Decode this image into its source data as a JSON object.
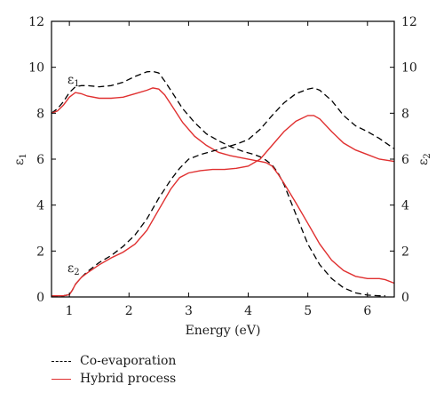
{
  "chart_data": {
    "type": "line",
    "xlabel": "Energy (eV)",
    "ylabel_left": "ε1",
    "ylabel_right": "ε2",
    "xlim": [
      0.7,
      6.45
    ],
    "ylim": [
      0,
      12
    ],
    "x_ticks": [
      1,
      2,
      3,
      4,
      5,
      6
    ],
    "y_ticks": [
      0,
      2,
      4,
      6,
      8,
      10,
      12
    ],
    "grid": false,
    "legend_position": "below-left",
    "curve_labels": [
      {
        "text": "ε1",
        "x": 1.2,
        "y": 9.9
      },
      {
        "text": "ε2",
        "x": 1.2,
        "y": 1.0
      }
    ],
    "series": [
      {
        "name": "Co-evaporation",
        "quantity": "ε1",
        "style": "dashed",
        "color": "#000000",
        "x": [
          0.7,
          0.8,
          0.9,
          1.0,
          1.1,
          1.2,
          1.3,
          1.5,
          1.7,
          1.9,
          2.1,
          2.3,
          2.4,
          2.5,
          2.6,
          2.7,
          2.9,
          3.1,
          3.3,
          3.5,
          3.7,
          3.9,
          4.1,
          4.2,
          4.3,
          4.4,
          4.5,
          4.6,
          4.8,
          5.0,
          5.2,
          5.4,
          5.6,
          5.8,
          6.0,
          6.2,
          6.3
        ],
        "y": [
          8.0,
          8.2,
          8.5,
          8.9,
          9.15,
          9.2,
          9.2,
          9.15,
          9.2,
          9.35,
          9.6,
          9.8,
          9.82,
          9.75,
          9.4,
          9.0,
          8.2,
          7.6,
          7.1,
          6.8,
          6.55,
          6.35,
          6.2,
          6.1,
          5.95,
          5.75,
          5.4,
          4.9,
          3.6,
          2.3,
          1.4,
          0.8,
          0.4,
          0.18,
          0.08,
          0.05,
          0.05
        ]
      },
      {
        "name": "Hybrid process",
        "quantity": "ε1",
        "style": "solid",
        "color": "#e03030",
        "x": [
          0.7,
          0.8,
          0.9,
          1.0,
          1.1,
          1.2,
          1.3,
          1.5,
          1.7,
          1.9,
          2.1,
          2.3,
          2.4,
          2.5,
          2.6,
          2.7,
          2.9,
          3.1,
          3.3,
          3.5,
          3.7,
          3.9,
          4.1,
          4.2,
          4.3,
          4.4,
          4.5,
          4.6,
          4.8,
          5.0,
          5.2,
          5.4,
          5.6,
          5.8,
          6.0,
          6.2,
          6.3,
          6.45
        ],
        "y": [
          8.0,
          8.1,
          8.35,
          8.7,
          8.9,
          8.85,
          8.75,
          8.65,
          8.65,
          8.7,
          8.85,
          9.0,
          9.1,
          9.05,
          8.8,
          8.4,
          7.6,
          7.0,
          6.6,
          6.3,
          6.15,
          6.05,
          5.95,
          5.9,
          5.85,
          5.7,
          5.35,
          4.95,
          4.1,
          3.2,
          2.3,
          1.6,
          1.15,
          0.9,
          0.8,
          0.8,
          0.75,
          0.6
        ]
      },
      {
        "name": "Co-evaporation",
        "quantity": "ε2",
        "style": "dashed",
        "color": "#000000",
        "x": [
          0.7,
          0.8,
          0.9,
          1.0,
          1.05,
          1.1,
          1.2,
          1.3,
          1.5,
          1.7,
          1.9,
          2.1,
          2.3,
          2.5,
          2.7,
          2.85,
          3.0,
          3.2,
          3.4,
          3.6,
          3.8,
          4.0,
          4.2,
          4.4,
          4.6,
          4.8,
          5.0,
          5.1,
          5.2,
          5.4,
          5.6,
          5.8,
          6.0,
          6.2,
          6.45
        ],
        "y": [
          0.05,
          0.05,
          0.05,
          0.1,
          0.3,
          0.55,
          0.85,
          1.1,
          1.5,
          1.8,
          2.2,
          2.7,
          3.4,
          4.3,
          5.1,
          5.6,
          6.0,
          6.2,
          6.35,
          6.5,
          6.65,
          6.85,
          7.3,
          7.9,
          8.45,
          8.85,
          9.05,
          9.1,
          9.0,
          8.55,
          7.9,
          7.45,
          7.2,
          6.9,
          6.45
        ]
      },
      {
        "name": "Hybrid process",
        "quantity": "ε2",
        "style": "solid",
        "color": "#e03030",
        "x": [
          0.7,
          0.8,
          0.9,
          1.0,
          1.05,
          1.1,
          1.2,
          1.3,
          1.5,
          1.7,
          1.9,
          2.1,
          2.3,
          2.5,
          2.7,
          2.85,
          3.0,
          3.2,
          3.4,
          3.6,
          3.8,
          4.0,
          4.2,
          4.4,
          4.6,
          4.8,
          5.0,
          5.1,
          5.2,
          5.4,
          5.6,
          5.8,
          6.0,
          6.2,
          6.45
        ],
        "y": [
          0.05,
          0.05,
          0.05,
          0.1,
          0.3,
          0.55,
          0.85,
          1.05,
          1.4,
          1.7,
          1.95,
          2.3,
          2.9,
          3.8,
          4.7,
          5.2,
          5.4,
          5.5,
          5.55,
          5.55,
          5.6,
          5.7,
          6.0,
          6.6,
          7.2,
          7.65,
          7.9,
          7.9,
          7.75,
          7.2,
          6.7,
          6.4,
          6.2,
          6.0,
          5.9
        ]
      }
    ]
  },
  "legend": {
    "items": [
      {
        "label": "Co-evaporation",
        "style": "dashed",
        "color": "#000000"
      },
      {
        "label": "Hybrid process",
        "style": "solid",
        "color": "#e03030"
      }
    ]
  }
}
